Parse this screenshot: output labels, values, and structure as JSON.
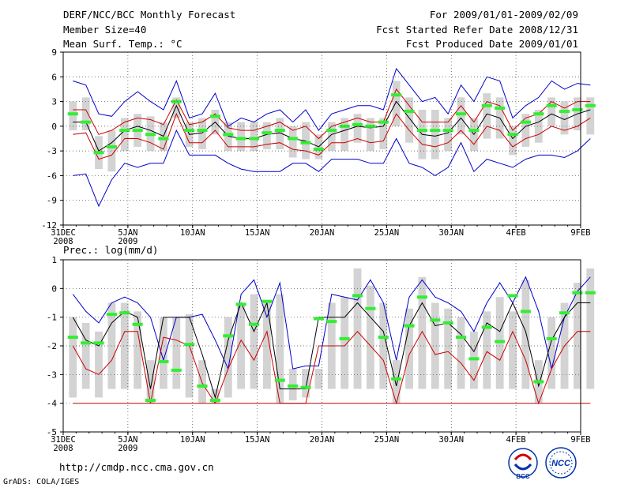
{
  "header": {
    "title": "DERF/NCC/BCC Monthly Forecast",
    "member_size": "Member Size=40",
    "variable": "Mean Surf. Temp.: °C",
    "period": "For 2009/01/01-2009/02/09",
    "started": "Fcst Started Refer Date 2008/12/31",
    "produced": "Fcst Produced Date 2009/01/01"
  },
  "footer": {
    "url": "http://cmdp.ncc.cma.gov.cn",
    "credit": "GrADS: COLA/IGES",
    "logo_left_text": "BCC",
    "logo_right_text": "NCC"
  },
  "colors": {
    "max_min": "#0000cc",
    "mean": "#000000",
    "spread": "#cc0000",
    "box": "#d3d3d3",
    "median": "#33ee33"
  },
  "chart_data": [
    {
      "type": "box-line",
      "title": "Mean Surf. Temp.: °C",
      "xlabel": "",
      "ylabel": "",
      "x_days": 41,
      "ylim": [
        -12,
        9
      ],
      "yticks": [
        -12,
        -9,
        -6,
        -3,
        0,
        3,
        6,
        9
      ],
      "xticks": [
        {
          "day": 0,
          "label": "31DEC",
          "sub": "2008"
        },
        {
          "day": 5,
          "label": "5JAN",
          "sub": "2009"
        },
        {
          "day": 10,
          "label": "10JAN",
          "sub": ""
        },
        {
          "day": 15,
          "label": "15JAN",
          "sub": ""
        },
        {
          "day": 20,
          "label": "20JAN",
          "sub": ""
        },
        {
          "day": 25,
          "label": "25JAN",
          "sub": ""
        },
        {
          "day": 30,
          "label": "30JAN",
          "sub": ""
        },
        {
          "day": 35,
          "label": "4FEB",
          "sub": ""
        },
        {
          "day": 40,
          "label": "9FEB",
          "sub": ""
        }
      ],
      "series": [
        {
          "name": "max",
          "color": "#0000cc",
          "start_day": 1,
          "values": [
            5.5,
            5,
            1.5,
            1.2,
            3,
            4.2,
            3,
            2,
            5.5,
            1,
            1.5,
            4,
            0,
            1,
            0.5,
            1.5,
            2,
            0.5,
            2,
            -0.5,
            1.5,
            2,
            2.5,
            2.5,
            2,
            7,
            5,
            3,
            3.5,
            1.5,
            5,
            3,
            6,
            5.5,
            1,
            2.5,
            3.5,
            5.5,
            4.5,
            5.2,
            5
          ]
        },
        {
          "name": "spread_upper",
          "color": "#cc0000",
          "start_day": 1,
          "values": [
            2,
            2,
            -1,
            -0.5,
            0.5,
            1,
            0.8,
            0.2,
            3.2,
            0.2,
            0.5,
            1.5,
            -0.2,
            -0.5,
            -0.5,
            0,
            0.5,
            -0.5,
            0,
            -1.5,
            0,
            0.5,
            1,
            0.5,
            0.5,
            4.5,
            2.5,
            0.5,
            0.5,
            0.5,
            2.5,
            0.5,
            3,
            2.5,
            -0.5,
            1,
            1.5,
            3,
            2.2,
            3,
            3
          ]
        },
        {
          "name": "mean",
          "color": "#000000",
          "start_day": 1,
          "values": [
            0.5,
            0.5,
            -3,
            -2,
            -0.5,
            0,
            -0.5,
            -1.2,
            2.5,
            -1,
            -0.8,
            0.5,
            -1.2,
            -1.5,
            -1.5,
            -1,
            -0.8,
            -1.5,
            -1.8,
            -2.5,
            -1,
            -0.5,
            0,
            -0.2,
            0,
            3,
            1,
            -1,
            -1.2,
            -0.8,
            1,
            -1,
            1.5,
            1,
            -1.5,
            0,
            0.5,
            1.5,
            0.8,
            1.5,
            2
          ]
        },
        {
          "name": "spread_lower",
          "color": "#cc0000",
          "start_day": 1,
          "values": [
            -1,
            -0.8,
            -4,
            -3.5,
            -1.5,
            -1.5,
            -2,
            -2.8,
            1.5,
            -2,
            -2,
            -0.5,
            -2.5,
            -2.5,
            -2.5,
            -2.2,
            -2,
            -2.8,
            -3,
            -3.5,
            -2,
            -2,
            -1.5,
            -2,
            -1.8,
            1.5,
            -0.5,
            -2.2,
            -2.5,
            -2,
            -0.5,
            -2.2,
            0,
            -0.5,
            -2.5,
            -1.5,
            -1,
            0,
            -0.5,
            0,
            1
          ]
        },
        {
          "name": "min",
          "color": "#0000cc",
          "start_day": 1,
          "values": [
            -6,
            -5.8,
            -9.7,
            -6.5,
            -4.5,
            -5,
            -4.5,
            -4.5,
            -0.5,
            -3.5,
            -3.5,
            -3.5,
            -4.5,
            -5.2,
            -5.5,
            -5.5,
            -5.5,
            -4.5,
            -4.5,
            -5.5,
            -4,
            -4,
            -4,
            -4.5,
            -4.5,
            -1.5,
            -4.5,
            -5,
            -6,
            -5,
            -2,
            -5.5,
            -4,
            -4.5,
            -5,
            -4,
            -3.5,
            -3.5,
            -3.8,
            -3,
            -1.5
          ]
        }
      ],
      "boxes": {
        "start_day": 1,
        "low": [
          -0.5,
          -0.5,
          -5.2,
          -5.5,
          -3,
          -2.5,
          -3,
          -3,
          1,
          -2.5,
          -2.8,
          -1,
          -3,
          -3,
          -3,
          -2.8,
          -2.8,
          -3.8,
          -4,
          -4,
          -3,
          -3,
          -2,
          -3,
          -2.8,
          0,
          -2,
          -4,
          -4,
          -3,
          -1,
          -3,
          -1.5,
          -1.5,
          -3.5,
          -2.5,
          -2,
          0,
          -1,
          -0.5,
          -1
        ],
        "high": [
          3,
          3.5,
          -1.2,
          -0.5,
          1,
          1.5,
          1.2,
          0.5,
          3.5,
          0.5,
          1,
          2,
          0.5,
          0.5,
          0.5,
          0.5,
          1,
          0,
          0.5,
          -1,
          0.5,
          1,
          1.5,
          1,
          1,
          5.5,
          3.5,
          2,
          2,
          1,
          3.5,
          1,
          4,
          3.5,
          0,
          1.5,
          2,
          3.5,
          3,
          3.5,
          3.5
        ],
        "median": [
          1.5,
          0.5,
          -3.2,
          -2.5,
          -0.5,
          -0.5,
          -1,
          -1.5,
          3,
          -0.5,
          -0.5,
          1.2,
          -1,
          -1.5,
          -1.5,
          -0.8,
          -0.5,
          -1.5,
          -2,
          -2.8,
          -0.5,
          0,
          0.2,
          0,
          0.5,
          3.8,
          1.8,
          -0.5,
          -0.5,
          -0.5,
          1.5,
          -0.5,
          2.5,
          2.2,
          -1,
          0.5,
          1.5,
          2.5,
          1.8,
          2,
          2.5
        ]
      }
    },
    {
      "type": "box-line",
      "title": "Prec.: log(mm/d)",
      "xlabel": "",
      "ylabel": "",
      "x_days": 41,
      "ylim": [
        -5,
        1
      ],
      "yticks": [
        -5,
        -4,
        -3,
        -2,
        -1,
        0,
        1
      ],
      "xticks": [
        {
          "day": 0,
          "label": "31DEC",
          "sub": "2008"
        },
        {
          "day": 5,
          "label": "5JAN",
          "sub": "2009"
        },
        {
          "day": 10,
          "label": "10JAN",
          "sub": ""
        },
        {
          "day": 15,
          "label": "15JAN",
          "sub": ""
        },
        {
          "day": 20,
          "label": "20JAN",
          "sub": ""
        },
        {
          "day": 25,
          "label": "25JAN",
          "sub": ""
        },
        {
          "day": 30,
          "label": "30JAN",
          "sub": ""
        },
        {
          "day": 35,
          "label": "4FEB",
          "sub": ""
        },
        {
          "day": 40,
          "label": "9FEB",
          "sub": ""
        }
      ],
      "series": [
        {
          "name": "max",
          "color": "#0000cc",
          "start_day": 1,
          "values": [
            -0.2,
            -0.8,
            -1.2,
            -0.5,
            -0.3,
            -0.5,
            -1.0,
            -2.5,
            -1.0,
            -1.0,
            -0.9,
            -1.8,
            -2.8,
            -0.2,
            0.3,
            -1.0,
            0.2,
            -2.8,
            -2.7,
            -2.7,
            -0.2,
            -0.3,
            -0.4,
            0.3,
            -0.5,
            -2.5,
            -0.3,
            0.3,
            -0.3,
            -0.5,
            -0.8,
            -1.5,
            -0.5,
            0.2,
            -0.5,
            0.4,
            -0.8,
            -2.8,
            -1.0,
            -0.1,
            0.4
          ]
        },
        {
          "name": "mean",
          "color": "#000000",
          "start_day": 1,
          "values": [
            -1.0,
            -1.8,
            -2.0,
            -1.2,
            -0.8,
            -1.0,
            -3.5,
            -1.0,
            -1.0,
            -1.0,
            -2.3,
            -3.8,
            -1.8,
            -0.5,
            -1.5,
            -0.5,
            -3.5,
            -3.5,
            -3.5,
            -1.0,
            -1.0,
            -1.0,
            -0.5,
            -1.0,
            -1.5,
            -3.4,
            -1.3,
            -0.5,
            -1.3,
            -1.2,
            -1.6,
            -2.2,
            -1.2,
            -1.5,
            -0.5,
            -1.5,
            -3.4,
            -1.8,
            -1.0,
            -0.5,
            -0.5
          ]
        },
        {
          "name": "spread_lower",
          "color": "#cc0000",
          "start_day": 1,
          "values": [
            -2.0,
            -2.8,
            -3.0,
            -2.5,
            -1.5,
            -1.5,
            -4.0,
            -1.7,
            -1.8,
            -2.0,
            -3.3,
            -4.0,
            -2.8,
            -1.8,
            -2.5,
            -1.5,
            -4.0,
            -4.0,
            -4.0,
            -2.0,
            -2.0,
            -2.0,
            -1.5,
            -2.0,
            -2.5,
            -4.0,
            -2.3,
            -1.5,
            -2.3,
            -2.2,
            -2.6,
            -3.2,
            -2.2,
            -2.5,
            -1.5,
            -2.5,
            -4.0,
            -2.8,
            -2.0,
            -1.5,
            -1.5
          ]
        },
        {
          "name": "min",
          "color": "#cc0000",
          "start_day": 1,
          "values": [
            -4,
            -4,
            -4,
            -4,
            -4,
            -4,
            -4,
            -4,
            -4,
            -4,
            -4,
            -4,
            -4,
            -4,
            -4,
            -4,
            -4,
            -4,
            -4,
            -4,
            -4,
            -4,
            -4,
            -4,
            -4,
            -4,
            -4,
            -4,
            -4,
            -4,
            -4,
            -4,
            -4,
            -4,
            -4,
            -4,
            -4,
            -4,
            -4,
            -4,
            -4
          ]
        }
      ],
      "boxes": {
        "start_day": 1,
        "low": [
          -3.8,
          -3.5,
          -3.8,
          -3.5,
          -3.5,
          -3.5,
          -4.0,
          -3.5,
          -3.5,
          -3.8,
          -4.0,
          -4.0,
          -3.8,
          -3.5,
          -3.5,
          -3.5,
          -4.0,
          -3.9,
          -3.8,
          -3.5,
          -3.5,
          -3.5,
          -3.5,
          -3.5,
          -3.5,
          -4.0,
          -3.5,
          -3.5,
          -3.5,
          -3.5,
          -3.5,
          -3.5,
          -3.5,
          -3.5,
          -3.5,
          -3.5,
          -4.0,
          -3.5,
          -3.5,
          -3.5,
          -3.5
        ],
        "high": [
          -1.0,
          -1.2,
          -1.5,
          -0.5,
          -0.5,
          -0.8,
          -2.5,
          -1.0,
          -1.0,
          -0.9,
          -2.5,
          -3.5,
          -1.0,
          -0.5,
          -0.2,
          -0.5,
          -0.2,
          -2.8,
          -2.8,
          -2.8,
          -0.5,
          -0.3,
          0.7,
          0.1,
          -0.5,
          -2.5,
          -0.7,
          0.4,
          -0.5,
          -0.7,
          -1.0,
          -1.5,
          -0.8,
          -0.3,
          -0.8,
          0.3,
          -2.5,
          -1.0,
          -0.5,
          0.2,
          0.7
        ],
        "median": [
          -1.7,
          -1.9,
          -1.9,
          -0.9,
          -0.85,
          -1.25,
          -3.9,
          -2.55,
          -2.85,
          -1.95,
          -3.4,
          -3.9,
          -1.65,
          -0.55,
          -1.25,
          -0.45,
          -3.2,
          -3.4,
          -3.45,
          -1.05,
          -1.15,
          -1.75,
          -0.25,
          -0.7,
          -1.7,
          -3.15,
          -1.3,
          -0.3,
          -1.1,
          -1.2,
          -1.7,
          -2.45,
          -1.35,
          -1.85,
          -0.25,
          -0.8,
          -3.25,
          -1.75,
          -0.85,
          -0.15,
          -0.15
        ]
      }
    }
  ]
}
